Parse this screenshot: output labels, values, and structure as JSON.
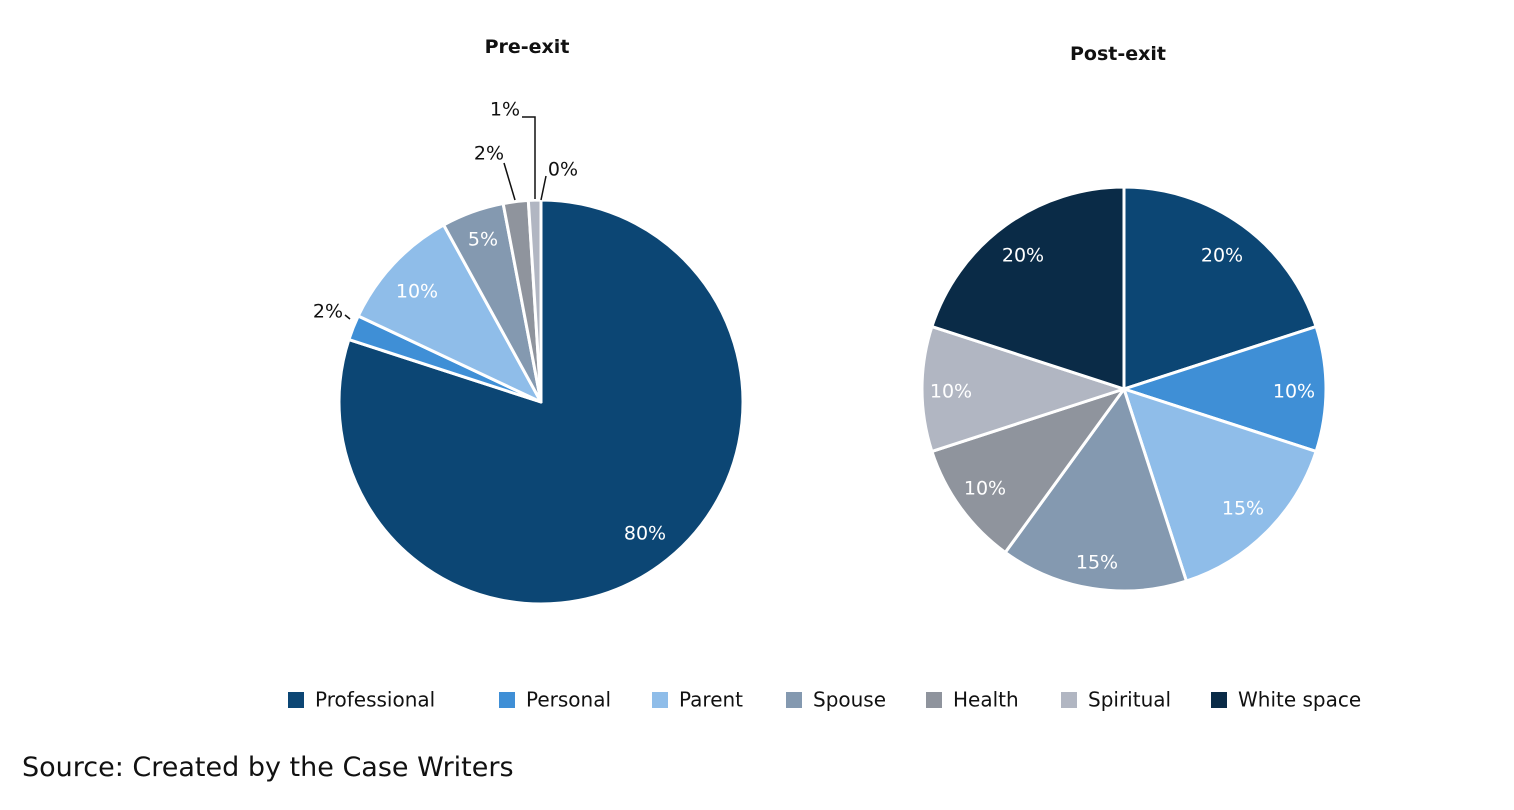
{
  "categories": [
    "Professional",
    "Personal",
    "Parent",
    "Spouse",
    "Health",
    "Spiritual",
    "White space"
  ],
  "colors": {
    "Professional": "#0c4674",
    "Personal": "#3f8fd6",
    "Parent": "#8fbde9",
    "Spouse": "#8499b0",
    "Health": "#8f949d",
    "Spiritual": "#b1b6c2",
    "White space": "#0a2b47"
  },
  "chart_data": [
    {
      "type": "pie",
      "title": "Pre-exit",
      "slices": [
        {
          "category": "Professional",
          "value": 80,
          "label": "80%"
        },
        {
          "category": "Personal",
          "value": 2,
          "label": "2%"
        },
        {
          "category": "Parent",
          "value": 10,
          "label": "10%"
        },
        {
          "category": "Spouse",
          "value": 5,
          "label": "5%"
        },
        {
          "category": "Health",
          "value": 2,
          "label": "2%"
        },
        {
          "category": "Spiritual",
          "value": 1,
          "label": "1%"
        },
        {
          "category": "White space",
          "value": 0,
          "label": "0%"
        }
      ],
      "start": "12 o'clock",
      "direction": "clockwise"
    },
    {
      "type": "pie",
      "title": "Post-exit",
      "slices": [
        {
          "category": "Professional",
          "value": 20,
          "label": "20%"
        },
        {
          "category": "Personal",
          "value": 10,
          "label": "10%"
        },
        {
          "category": "Parent",
          "value": 15,
          "label": "15%"
        },
        {
          "category": "Spouse",
          "value": 15,
          "label": "15%"
        },
        {
          "category": "Health",
          "value": 10,
          "label": "10%"
        },
        {
          "category": "Spiritual",
          "value": 10,
          "label": "10%"
        },
        {
          "category": "White space",
          "value": 20,
          "label": "20%"
        }
      ],
      "start": "12 o'clock",
      "direction": "clockwise"
    }
  ],
  "legend": {
    "placement": "bottom",
    "items": [
      "Professional",
      "Personal",
      "Parent",
      "Spouse",
      "Health",
      "Spiritual",
      "White space"
    ]
  },
  "source": "Source: Created by the Case Writers"
}
